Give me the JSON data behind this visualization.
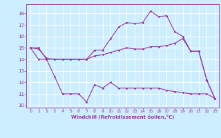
{
  "xlabel": "Windchill (Refroidissement éolien,°C)",
  "background_color": "#cceeff",
  "grid_color": "#aaddee",
  "line_color": "#993399",
  "xlim": [
    -0.5,
    23.5
  ],
  "ylim": [
    9.8,
    18.8
  ],
  "xticks": [
    0,
    1,
    2,
    3,
    4,
    5,
    6,
    7,
    8,
    9,
    10,
    11,
    12,
    13,
    14,
    15,
    16,
    17,
    18,
    19,
    20,
    21,
    22,
    23
  ],
  "yticks": [
    10,
    11,
    12,
    13,
    14,
    15,
    16,
    17,
    18
  ],
  "line1_x": [
    0,
    1,
    2,
    3,
    4,
    5,
    6,
    7,
    8,
    9,
    10,
    11,
    12,
    13,
    14,
    15,
    16,
    17,
    18,
    19,
    20,
    21,
    22,
    23
  ],
  "line1_y": [
    15.0,
    15.0,
    14.0,
    14.0,
    14.0,
    14.0,
    14.0,
    14.0,
    14.8,
    14.8,
    15.8,
    16.8,
    17.2,
    17.1,
    17.2,
    18.2,
    17.7,
    17.8,
    16.4,
    16.0,
    14.7,
    14.7,
    12.2,
    10.6
  ],
  "line2_x": [
    0,
    1,
    2,
    3,
    4,
    5,
    6,
    7,
    8,
    9,
    10,
    11,
    12,
    13,
    14,
    15,
    16,
    17,
    18,
    19,
    20,
    21,
    22,
    23
  ],
  "line2_y": [
    15.0,
    14.9,
    14.1,
    14.0,
    14.0,
    14.0,
    14.0,
    14.0,
    14.3,
    14.4,
    14.6,
    14.8,
    15.0,
    14.9,
    14.9,
    15.1,
    15.1,
    15.2,
    15.4,
    15.8,
    14.7,
    14.7,
    12.2,
    10.6
  ],
  "line3_x": [
    0,
    1,
    2,
    3,
    4,
    5,
    6,
    7,
    8,
    9,
    10,
    11,
    12,
    13,
    14,
    15,
    16,
    17,
    18,
    19,
    20,
    21,
    22,
    23
  ],
  "line3_y": [
    15.0,
    14.0,
    14.0,
    12.5,
    11.0,
    11.0,
    11.0,
    10.3,
    11.8,
    11.5,
    12.0,
    11.5,
    11.5,
    11.5,
    11.5,
    11.5,
    11.5,
    11.3,
    11.2,
    11.1,
    11.0,
    11.0,
    11.0,
    10.6
  ]
}
